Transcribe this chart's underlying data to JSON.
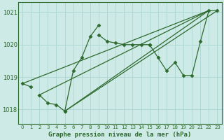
{
  "xlabel": "Graphe pression niveau de la mer (hPa)",
  "bg_color": "#ceeae7",
  "grid_color": "#b0d8d4",
  "line_color": "#2d6a2d",
  "xlim": [
    -0.5,
    23.5
  ],
  "ylim": [
    1017.55,
    1021.3
  ],
  "yticks": [
    1018,
    1019,
    1020,
    1021
  ],
  "xticks": [
    0,
    1,
    2,
    3,
    4,
    5,
    6,
    7,
    8,
    9,
    10,
    11,
    12,
    13,
    14,
    15,
    16,
    17,
    18,
    19,
    20,
    21,
    22,
    23
  ],
  "series": {
    "s1": {
      "x": [
        0,
        1
      ],
      "y": [
        1018.8,
        1018.7
      ]
    },
    "s2": {
      "x": [
        2,
        3,
        4,
        5
      ],
      "y": [
        1018.45,
        1018.2,
        1018.15,
        1017.95
      ]
    },
    "s3": {
      "x": [
        5,
        6,
        7,
        8,
        9
      ],
      "y": [
        1017.95,
        1019.2,
        1019.6,
        1020.25,
        1020.6
      ]
    },
    "s4": {
      "x": [
        9,
        10,
        11,
        12,
        13,
        14,
        15
      ],
      "y": [
        1020.3,
        1020.1,
        1020.05,
        1020.0,
        1020.0,
        1020.0,
        1020.0
      ]
    },
    "s5": {
      "x": [
        15,
        16,
        17,
        18,
        19,
        20,
        21,
        22,
        23
      ],
      "y": [
        1020.0,
        1019.6,
        1019.2,
        1019.45,
        1019.05,
        1019.05,
        1020.1,
        1021.05,
        1021.05
      ]
    },
    "diag1": {
      "x": [
        0,
        22
      ],
      "y": [
        1018.8,
        1021.05
      ]
    },
    "diag2": {
      "x": [
        2,
        22
      ],
      "y": [
        1018.45,
        1021.05
      ]
    },
    "diag3": {
      "x": [
        5,
        22
      ],
      "y": [
        1017.95,
        1021.05
      ]
    },
    "diag4": {
      "x": [
        5,
        23
      ],
      "y": [
        1017.95,
        1021.05
      ]
    }
  },
  "marker_size": 2.5,
  "line_width": 0.9
}
